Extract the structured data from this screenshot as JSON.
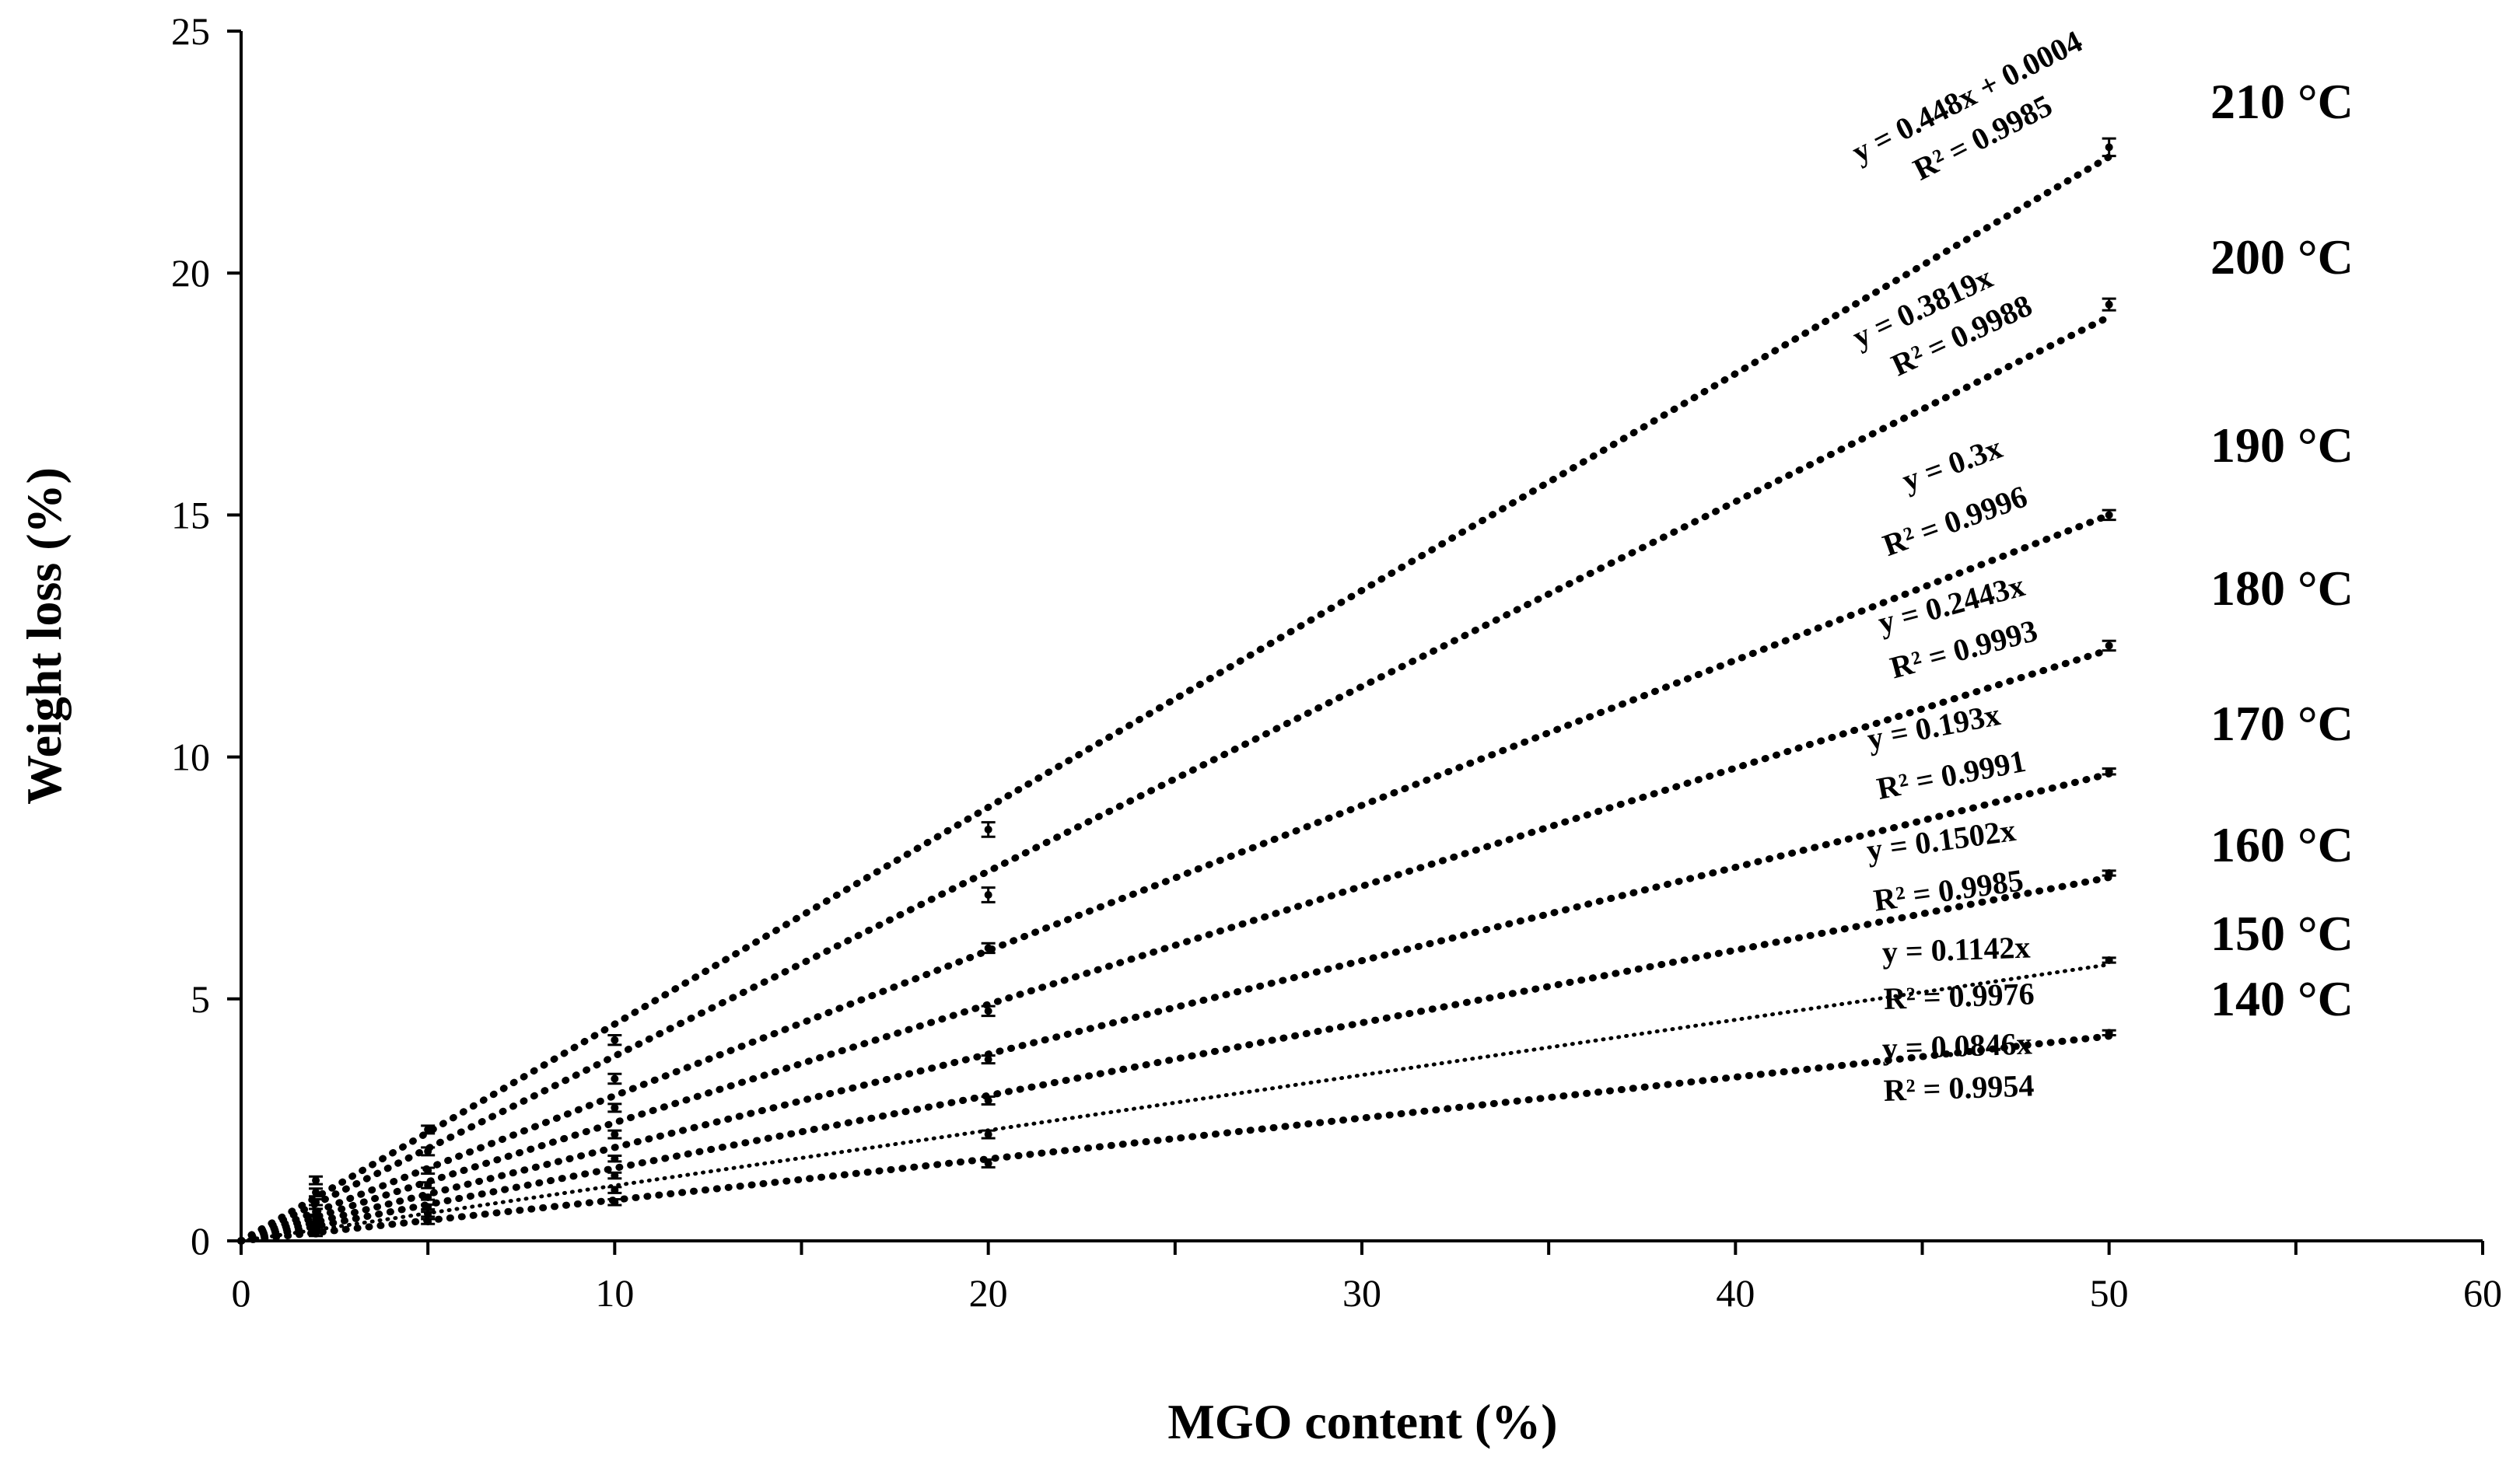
{
  "chart_data": {
    "type": "scatter",
    "xlabel": "MGO content (%)",
    "ylabel": "Weight loss (%)",
    "xlim": [
      0,
      60
    ],
    "ylim": [
      0,
      25
    ],
    "xticks": [
      0,
      10,
      20,
      30,
      40,
      50,
      60
    ],
    "yticks": [
      0,
      5,
      10,
      15,
      20,
      25
    ],
    "grid": false,
    "x": [
      0,
      2,
      5,
      10,
      20,
      50
    ],
    "series": [
      {
        "name": "210 °C",
        "values": [
          0,
          1.25,
          2.3,
          4.15,
          8.5,
          22.6
        ],
        "errors": [
          0,
          0.08,
          0.08,
          0.1,
          0.15,
          0.18
        ],
        "trendline": {
          "slope": 0.448,
          "intercept": 0.0004
        },
        "equation": "y = 0.448x + 0.0004",
        "r2": "R² = 0.9985"
      },
      {
        "name": "200 °C",
        "values": [
          0,
          1.0,
          1.85,
          3.35,
          7.15,
          19.35
        ],
        "errors": [
          0,
          0.08,
          0.08,
          0.1,
          0.15,
          0.12
        ],
        "trendline": {
          "slope": 0.3819,
          "intercept": 0
        },
        "equation": "y = 0.3819x",
        "r2": "R² = 0.9988"
      },
      {
        "name": "190 °C",
        "values": [
          0,
          0.8,
          1.45,
          2.75,
          6.05,
          15.0
        ],
        "errors": [
          0,
          0.06,
          0.06,
          0.08,
          0.1,
          0.1
        ],
        "trendline": {
          "slope": 0.3,
          "intercept": 0
        },
        "equation": "y = 0.3x",
        "r2": "R² = 0.9996"
      },
      {
        "name": "180 °C",
        "values": [
          0,
          0.6,
          1.15,
          2.2,
          4.75,
          12.3
        ],
        "errors": [
          0,
          0.06,
          0.06,
          0.08,
          0.1,
          0.1
        ],
        "trendline": {
          "slope": 0.2443,
          "intercept": 0
        },
        "equation": "y = 0.2443x",
        "r2": "R² = 0.9993"
      },
      {
        "name": "170 °C",
        "values": [
          0,
          0.45,
          0.9,
          1.7,
          3.75,
          9.7
        ],
        "errors": [
          0,
          0.05,
          0.05,
          0.06,
          0.08,
          0.06
        ],
        "trendline": {
          "slope": 0.193,
          "intercept": 0
        },
        "equation": "y = 0.193x",
        "r2": "R² = 0.9991"
      },
      {
        "name": "160 °C",
        "values": [
          0,
          0.35,
          0.7,
          1.35,
          2.9,
          7.6
        ],
        "errors": [
          0,
          0.05,
          0.05,
          0.06,
          0.08,
          0.05
        ],
        "trendline": {
          "slope": 0.1502,
          "intercept": 0
        },
        "equation": "y = 0.1502x",
        "r2": "R² = 0.9985"
      },
      {
        "name": "150 °C",
        "values": [
          0,
          0.25,
          0.55,
          1.05,
          2.2,
          5.8
        ],
        "errors": [
          0,
          0.05,
          0.05,
          0.06,
          0.08,
          0.05
        ],
        "trendline": {
          "slope": 0.1142,
          "intercept": 0
        },
        "equation": "y = 0.1142x",
        "r2": "R² = 0.9976"
      },
      {
        "name": "140 °C",
        "values": [
          0,
          0.15,
          0.4,
          0.8,
          1.6,
          4.3
        ],
        "errors": [
          0,
          0.05,
          0.05,
          0.06,
          0.08,
          0.05
        ],
        "trendline": {
          "slope": 0.0846,
          "intercept": 0
        },
        "equation": "y = 0.0846x",
        "r2": "R² = 0.9954"
      }
    ]
  }
}
